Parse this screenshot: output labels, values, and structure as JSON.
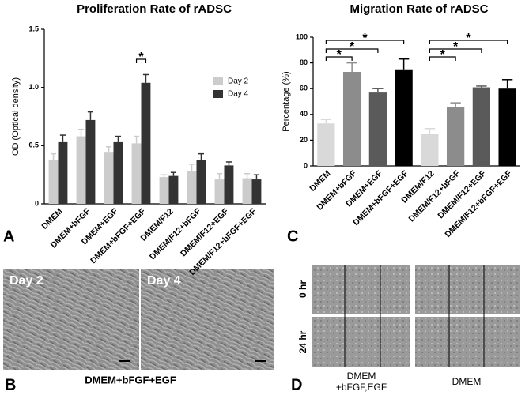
{
  "chart_data": [
    {
      "type": "bar",
      "title": "Proliferation Rate of rADSC",
      "y_label": "OD (Optical density)",
      "categories": [
        "DMEM",
        "DMEM+bFGF",
        "DMEM+EGF",
        "DMEM+bFGF+EGF",
        "DMEM/F12",
        "DMEM/F12+bFGF",
        "DMEM/F12+EGF",
        "DMEM/F12+bFGF+EGF"
      ],
      "series": [
        {
          "name": "Day 2",
          "color": "#cccccc",
          "values": [
            0.38,
            0.58,
            0.44,
            0.52,
            0.23,
            0.28,
            0.21,
            0.22
          ],
          "errors": [
            0.05,
            0.06,
            0.05,
            0.06,
            0.02,
            0.06,
            0.05,
            0.04
          ]
        },
        {
          "name": "Day 4",
          "color": "#333333",
          "values": [
            0.53,
            0.72,
            0.53,
            1.04,
            0.24,
            0.38,
            0.33,
            0.21
          ],
          "errors": [
            0.06,
            0.07,
            0.05,
            0.07,
            0.03,
            0.05,
            0.03,
            0.04
          ]
        }
      ],
      "ylim": [
        0,
        1.5
      ],
      "yticks": [
        0,
        0.5,
        {
          "value": 1,
          "label": "1.0"
        },
        1.5
      ],
      "legend": "right",
      "annotations": [
        "*"
      ],
      "panel": "A"
    },
    {
      "type": "bar",
      "title": "Migration Rate of rADSC",
      "y_label": "Percentage (%)",
      "categories": [
        "DMEM",
        "DMEM+bFGF",
        "DMEM+EGF",
        "DMEM+bFGF+EGF",
        "DMEM/F12",
        "DMEM/F12+bFGF",
        "DMEM/F12+EGF",
        "DMEM/F12+bFGF+EGF"
      ],
      "values": [
        33,
        73,
        57,
        75,
        25,
        46,
        61,
        60
      ],
      "errors": [
        3,
        7,
        3,
        8,
        4,
        3,
        1,
        7
      ],
      "colors": [
        "#d9d9d9",
        "#8c8c8c",
        "#5a5a5a",
        "#000000",
        "#d9d9d9",
        "#8c8c8c",
        "#5a5a5a",
        "#000000"
      ],
      "ylim": [
        0,
        100
      ],
      "yticks": [
        0,
        20,
        40,
        60,
        80,
        100
      ],
      "annotations": [
        "*",
        "*",
        "*",
        "*",
        "*",
        "*"
      ],
      "panel": "C"
    }
  ],
  "panel_b": {
    "panel": "B",
    "images": [
      "Day 2",
      "Day 4"
    ],
    "caption": "DMEM+bFGF+EGF"
  },
  "panel_d": {
    "panel": "D",
    "rows": [
      "0 hr",
      "24 hr"
    ],
    "captions": [
      [
        "DMEM",
        "+bFGF,EGF"
      ],
      [
        "DMEM"
      ]
    ]
  }
}
